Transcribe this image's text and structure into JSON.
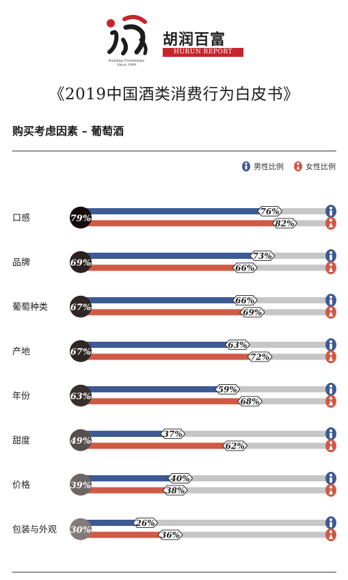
{
  "header": {
    "brand_cn": "胡润百富",
    "brand_en": "HURUN REPORT",
    "logo_caption_1": "Building Friendships",
    "logo_caption_2": "Since 1999"
  },
  "title": "《2019中国酒类消费行为白皮书》",
  "section_title": "购买考虑因素 – 葡萄酒",
  "legend": {
    "male": "男性比例",
    "female": "女性比例"
  },
  "colors": {
    "male": "#3d5a94",
    "female": "#cf5a45",
    "track": "#c6c6c6"
  },
  "chart_data": {
    "type": "bar",
    "title": "购买考虑因素 – 葡萄酒",
    "xlim": [
      0,
      100
    ],
    "categories": [
      "口感",
      "品牌",
      "葡萄种类",
      "产地",
      "年份",
      "甜度",
      "价格",
      "包装与外观"
    ],
    "overall": [
      79,
      69,
      67,
      67,
      63,
      49,
      39,
      30
    ],
    "series": [
      {
        "name": "男性比例",
        "values": [
          76,
          73,
          66,
          63,
          59,
          37,
          40,
          26
        ]
      },
      {
        "name": "女性比例",
        "values": [
          82,
          66,
          69,
          72,
          68,
          62,
          38,
          36
        ]
      }
    ]
  }
}
